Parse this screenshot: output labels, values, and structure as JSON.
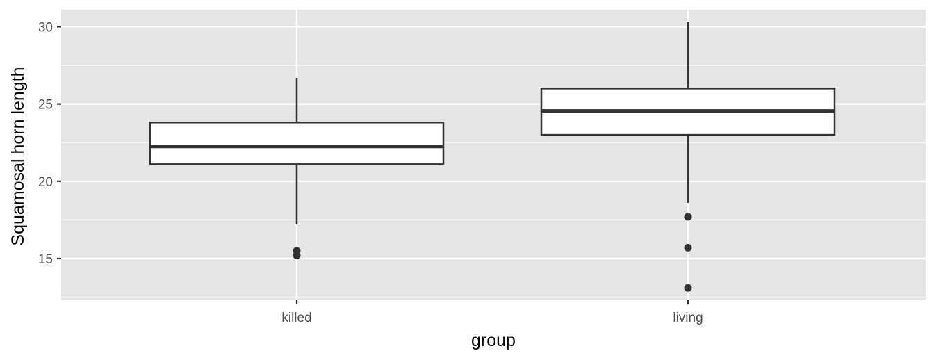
{
  "chart_data": {
    "type": "boxplot",
    "title": "",
    "xlabel": "group",
    "ylabel": "Squamosal horn length",
    "categories": [
      "killed",
      "living"
    ],
    "ylim": [
      12.3,
      31.1
    ],
    "yticks": [
      15,
      20,
      25,
      30
    ],
    "ytick_labels": [
      "15",
      "20",
      "25",
      "30"
    ],
    "grid": true,
    "legend": "none",
    "boxes": [
      {
        "category": "killed",
        "whisker_low": 17.2,
        "q1": 21.1,
        "median": 22.25,
        "q3": 23.8,
        "whisker_high": 26.7,
        "outliers": [
          15.5,
          15.2
        ]
      },
      {
        "category": "living",
        "whisker_low": 18.6,
        "q1": 23.0,
        "median": 24.55,
        "q3": 26.0,
        "whisker_high": 30.3,
        "outliers": [
          17.7,
          15.7,
          13.1
        ]
      }
    ],
    "colors": {
      "panel": "#e5e5e5",
      "grid_major": "#ffffff",
      "box_fill": "#ffffff",
      "box_line": "#333333",
      "outlier": "#333333",
      "tick_text": "#4d4d4d",
      "title_text": "#000000"
    }
  }
}
